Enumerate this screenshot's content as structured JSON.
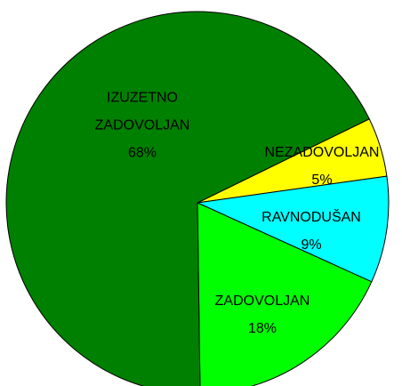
{
  "chart_data": {
    "type": "pie",
    "categories": [
      "NEZADOVOLJAN",
      "RAVNODUŠAN",
      "ZADOVOLJAN",
      "IZUZETNO ZADOVOLJAN"
    ],
    "values": [
      5,
      9,
      18,
      68
    ],
    "value_labels": [
      "5%",
      "9%",
      "18%",
      "68%"
    ],
    "colors": [
      "#ffff00",
      "#00ffff",
      "#00ff00",
      "#008000"
    ]
  }
}
